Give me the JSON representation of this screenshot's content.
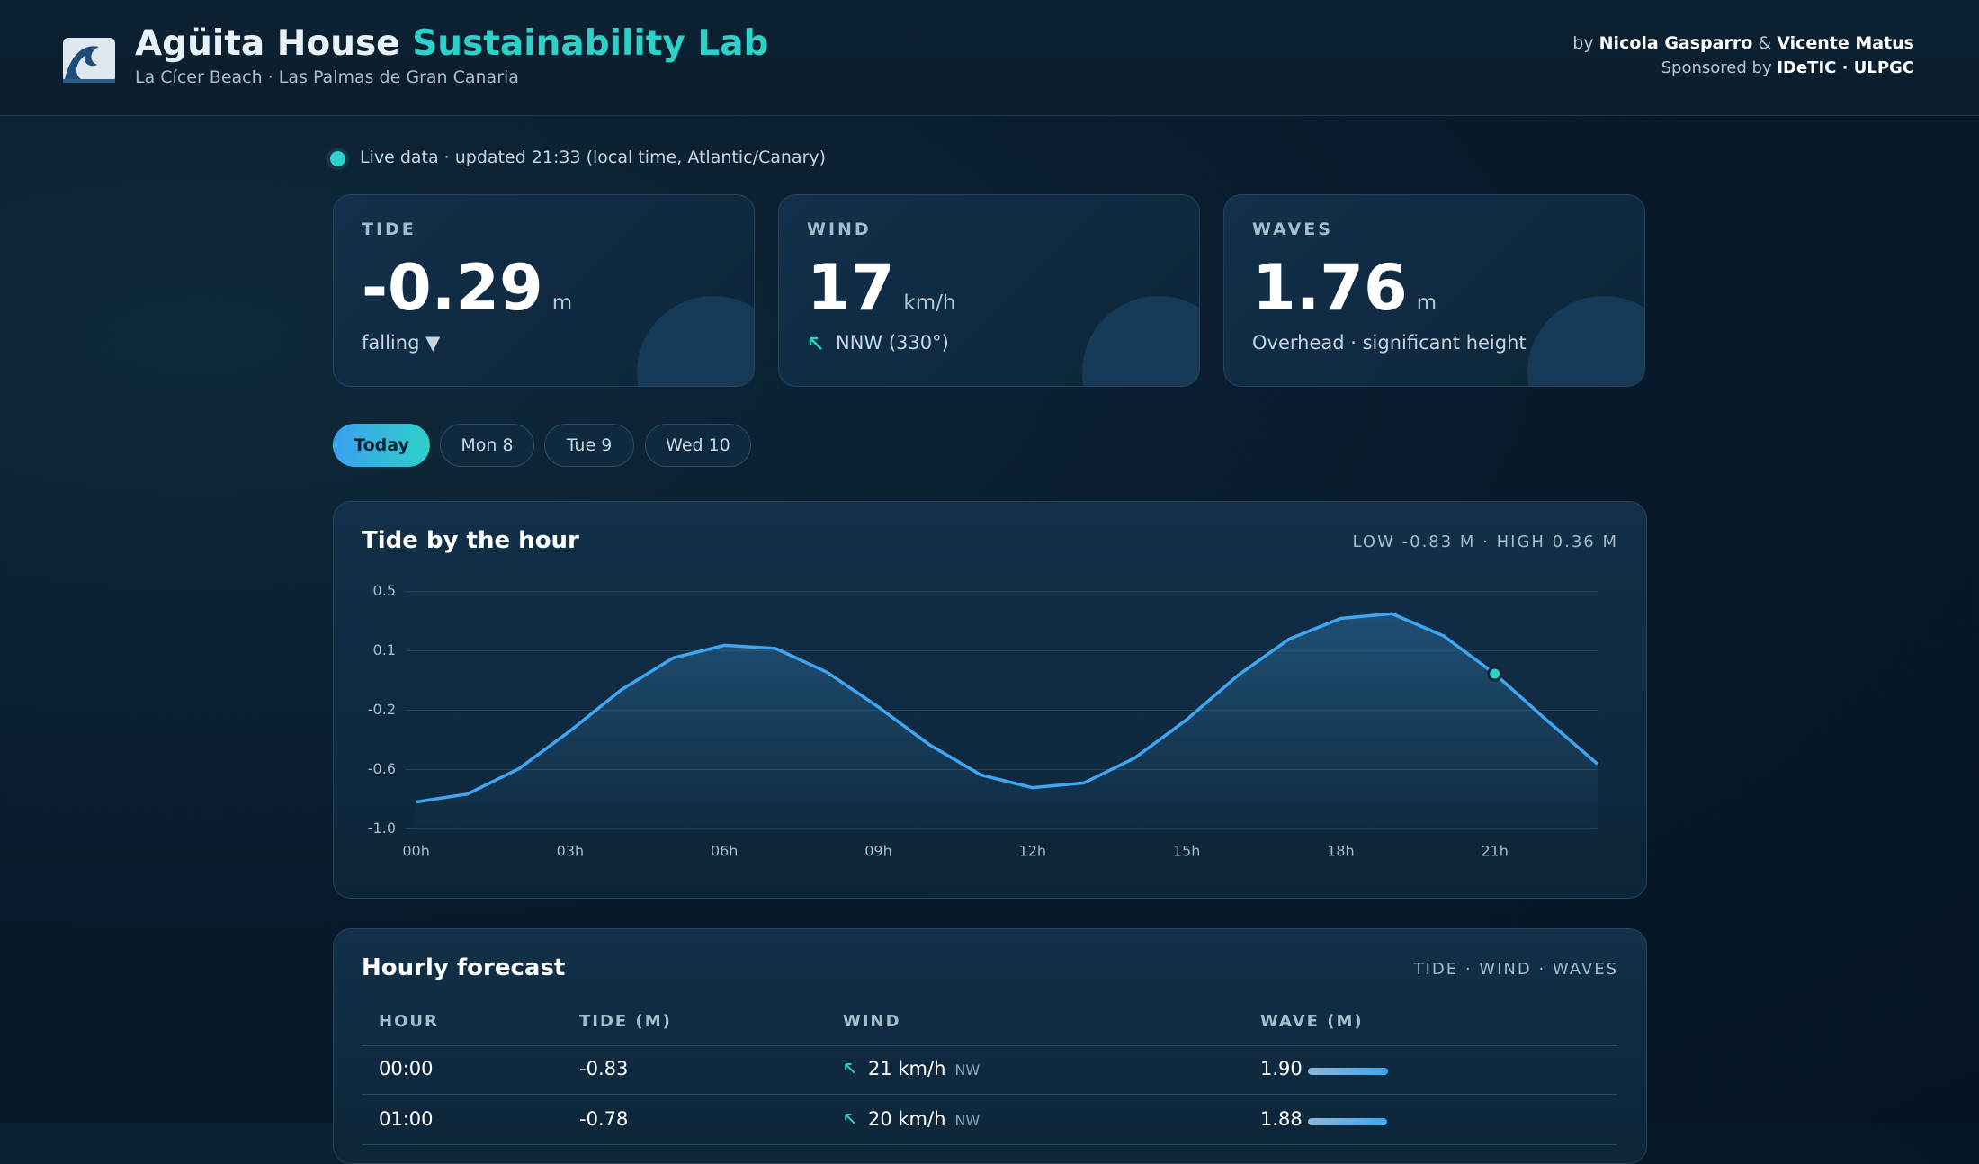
{
  "header": {
    "title_main": "Agüita House",
    "title_accent": "Sustainability Lab",
    "subtitle": "La Cícer Beach · Las Palmas de Gran Canaria",
    "credit_prefix": "by",
    "authors": [
      "Nicola Gasparro",
      "Vicente Matus"
    ],
    "credit_joiner": "&",
    "sponsor_prefix": "Sponsored by",
    "sponsor": "IDeTIC · ULPGC"
  },
  "status": "Live data · updated 21:33 (local time, Atlantic/Canary)",
  "cards": [
    {
      "label": "TIDE",
      "value": "-0.29",
      "unit": "m",
      "note": "falling ▼"
    },
    {
      "label": "WIND",
      "value": "17",
      "unit": "km/h",
      "note": "NNW (330°)"
    },
    {
      "label": "WAVES",
      "value": "1.76",
      "unit": "m",
      "note": "Overhead · significant height"
    }
  ],
  "tabs": [
    "Today",
    "Mon 8",
    "Tue 9",
    "Wed 10"
  ],
  "chart_data": {
    "type": "line",
    "title": "Tide by the hour",
    "subtitle": "LOW -0.83 M · HIGH 0.36 M",
    "categories": [
      "00h",
      null,
      null,
      "03h",
      null,
      null,
      "06h",
      null,
      null,
      "09h",
      null,
      null,
      "12h",
      null,
      null,
      "15h",
      null,
      null,
      "18h",
      null,
      null,
      "21h",
      null,
      null
    ],
    "values": [
      -0.83,
      -0.78,
      -0.62,
      -0.38,
      -0.12,
      0.08,
      0.16,
      0.14,
      -0.01,
      -0.23,
      -0.47,
      -0.66,
      -0.74,
      -0.71,
      -0.55,
      -0.31,
      -0.03,
      0.2,
      0.33,
      0.36,
      0.22,
      -0.02,
      -0.31,
      -0.59
    ],
    "color": "#3ea6f2",
    "highlight_index": 21,
    "ylim": [
      -1,
      0.5
    ],
    "yticks": [
      {
        "value": -1,
        "label": "-1.0"
      },
      {
        "value": -0.625,
        "label": "-0.6"
      },
      {
        "value": -0.25,
        "label": "-0.2"
      },
      {
        "value": 0.125,
        "label": "0.1"
      },
      0.5
    ],
    "grid": true
  },
  "forecast": {
    "title": "Hourly forecast",
    "subtitle": "TIDE · WIND · WAVES",
    "columns": [
      "HOUR",
      "TIDE (M)",
      "WIND",
      "WAVE (M)"
    ],
    "rows": [
      {
        "hour": "00:00",
        "tide": "-0.83",
        "wind": "21 km/h",
        "wind_dir": "NW",
        "wave": 1.9,
        "wave_label": "1.90"
      },
      {
        "hour": "01:00",
        "tide": "-0.78",
        "wind": "20 km/h",
        "wind_dir": "NW",
        "wave": 1.88,
        "wave_label": "1.88"
      }
    ]
  }
}
